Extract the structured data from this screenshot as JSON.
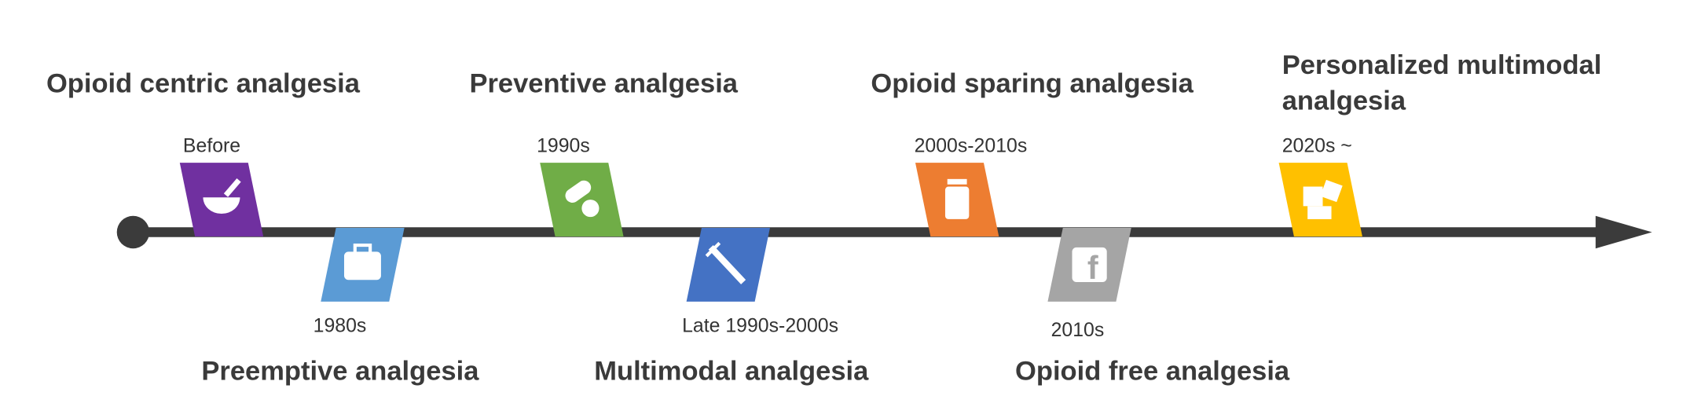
{
  "timeline": {
    "events": [
      {
        "title_lines": [
          "Opioid centric analgesia"
        ],
        "period": "Before",
        "color": "#7030a0"
      },
      {
        "title_lines": [
          "Preemptive analgesia"
        ],
        "period": "1980s",
        "color": "#5b9bd5"
      },
      {
        "title_lines": [
          "Preventive analgesia"
        ],
        "period": "1990s",
        "color": "#70ad47"
      },
      {
        "title_lines": [
          "Multimodal analgesia"
        ],
        "period": "Late 1990s-2000s",
        "color": "#4472c4"
      },
      {
        "title_lines": [
          "Opioid sparing analgesia"
        ],
        "period": "2000s-2010s",
        "color": "#ed7d31"
      },
      {
        "title_lines": [
          "Opioid free analgesia"
        ],
        "period": "2010s",
        "color": "#a5a5a5"
      },
      {
        "title_lines": [
          "Personalized multimodal",
          "analgesia"
        ],
        "period": "2020s ~",
        "color": "#ffc000"
      }
    ]
  }
}
